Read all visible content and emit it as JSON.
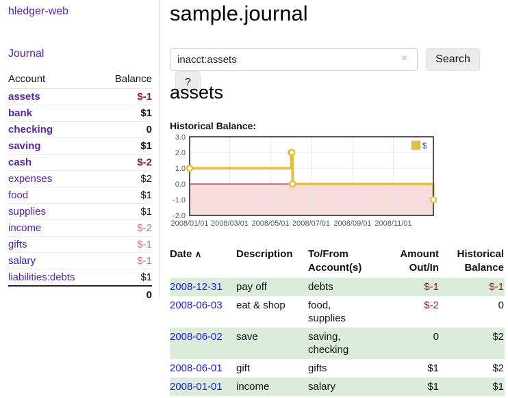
{
  "app": {
    "brand": "hledger-web"
  },
  "nav": {
    "journal": "Journal"
  },
  "sidebar": {
    "header": {
      "account": "Account",
      "balance": "Balance"
    },
    "accounts": [
      {
        "name": "assets",
        "balance": "$-1"
      },
      {
        "name": "bank",
        "balance": "$1"
      },
      {
        "name": "checking",
        "balance": "0"
      },
      {
        "name": "saving",
        "balance": "$1"
      },
      {
        "name": "cash",
        "balance": "$-2"
      },
      {
        "name": "expenses",
        "balance": "$2"
      },
      {
        "name": "food",
        "balance": "$1"
      },
      {
        "name": "supplies",
        "balance": "$1"
      },
      {
        "name": "income",
        "balance": "$-2"
      },
      {
        "name": "gifts",
        "balance": "$-1"
      },
      {
        "name": "salary",
        "balance": "$-1"
      },
      {
        "name": "liabilities:debts",
        "balance": "$1"
      }
    ],
    "total": "0"
  },
  "header": {
    "title": "sample.journal"
  },
  "search": {
    "value": "inacct:assets",
    "clear_icon": "×",
    "submit_label": "Search",
    "help_label": "?"
  },
  "account_page": {
    "heading": "assets",
    "chart_label": "Historical Balance:"
  },
  "chart_data": {
    "type": "line",
    "step": true,
    "title": "Historical Balance",
    "xlim": [
      "2008-01-01",
      "2008-12-31"
    ],
    "ylim": [
      -2,
      3
    ],
    "y_ticks": [
      {
        "label": "3.0",
        "value": 3
      },
      {
        "label": "2.0",
        "value": 2
      },
      {
        "label": "1.0",
        "value": 1
      },
      {
        "label": "0.0",
        "value": 0
      },
      {
        "label": "-1.0",
        "value": -1
      },
      {
        "label": "-2.0",
        "value": -2
      }
    ],
    "x_ticks": [
      {
        "label": "2008/01/01",
        "date": "2008-01-01"
      },
      {
        "label": "2008/03/01",
        "date": "2008-03-01"
      },
      {
        "label": "2008/05/01",
        "date": "2008-05-01"
      },
      {
        "label": "2008/07/01",
        "date": "2008-07-01"
      },
      {
        "label": "2008/09/01",
        "date": "2008-09-01"
      },
      {
        "label": "2008/11/01",
        "date": "2008-11-01"
      }
    ],
    "series": [
      {
        "name": "$",
        "color": "#e6bd3e",
        "points": [
          [
            "2008-01-01",
            1
          ],
          [
            "2008-06-01",
            2
          ],
          [
            "2008-06-02",
            2
          ],
          [
            "2008-06-03",
            0
          ],
          [
            "2008-12-31",
            -1
          ]
        ]
      }
    ],
    "grid": true,
    "legend_position": "top-right",
    "colors": {
      "negative_region": "#f8dcdc",
      "zero_line": "#8b0000",
      "border": "#545454",
      "gridline": "#e7e7e7",
      "tick_text": "#545454"
    }
  },
  "register": {
    "headers": {
      "date": "Date",
      "sort_icon": "∧",
      "description": "Description",
      "tofrom_line1": "To/From",
      "tofrom_line2": "Account(s)",
      "amount_line1": "Amount",
      "amount_line2": "Out/In",
      "balance_line1": "Historical",
      "balance_line2": "Balance"
    },
    "rows": [
      {
        "date": "2008-12-31",
        "description": "pay off",
        "accounts": "debts",
        "amount": "$-1",
        "balance": "$-1"
      },
      {
        "date": "2008-06-03",
        "description": "eat & shop",
        "accounts": "food, supplies",
        "amount": "$-2",
        "balance": "0"
      },
      {
        "date": "2008-06-02",
        "description": "save",
        "accounts": "saving, checking",
        "amount": "0",
        "balance": "$2"
      },
      {
        "date": "2008-06-01",
        "description": "gift",
        "accounts": "gifts",
        "amount": "$1",
        "balance": "$2"
      },
      {
        "date": "2008-01-01",
        "description": "income",
        "accounts": "salary",
        "amount": "$1",
        "balance": "$1"
      }
    ]
  }
}
